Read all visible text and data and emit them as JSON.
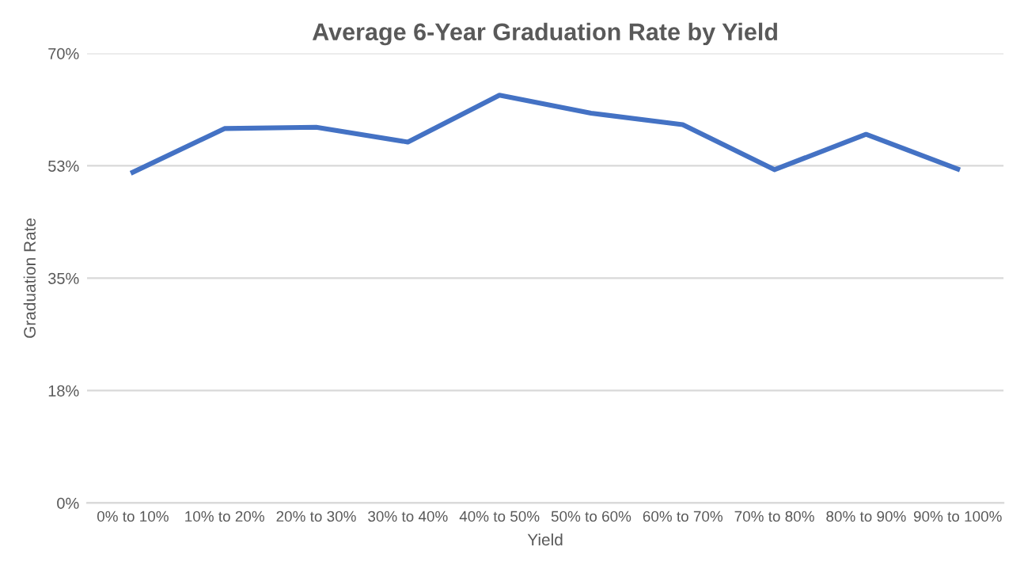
{
  "chart_data": {
    "type": "line",
    "title": "Average 6-Year Graduation Rate by Yield",
    "xlabel": "Yield",
    "ylabel": "Graduation Rate",
    "categories": [
      "0% to 10%",
      "10% to 20%",
      "20% to 30%",
      "30% to 40%",
      "40% to 50%",
      "50% to 60%",
      "60% to 70%",
      "70% to 80%",
      "80% to 90%",
      "90% to 100%"
    ],
    "series": [
      {
        "color": "#4472c4",
        "values": [
          51.5,
          58.3,
          58.5,
          56.2,
          63.5,
          60.7,
          58.9,
          51.9,
          57.4,
          52.0
        ]
      }
    ],
    "ylim": [
      0,
      70
    ],
    "yticks": [
      {
        "value": 0,
        "label": "0%"
      },
      {
        "value": 17.5,
        "label": "18%"
      },
      {
        "value": 35,
        "label": "35%"
      },
      {
        "value": 52.5,
        "label": "53%"
      },
      {
        "value": 70,
        "label": "70%"
      }
    ],
    "grid": "y",
    "legend": false,
    "marker": "none",
    "line_style": "solid"
  }
}
